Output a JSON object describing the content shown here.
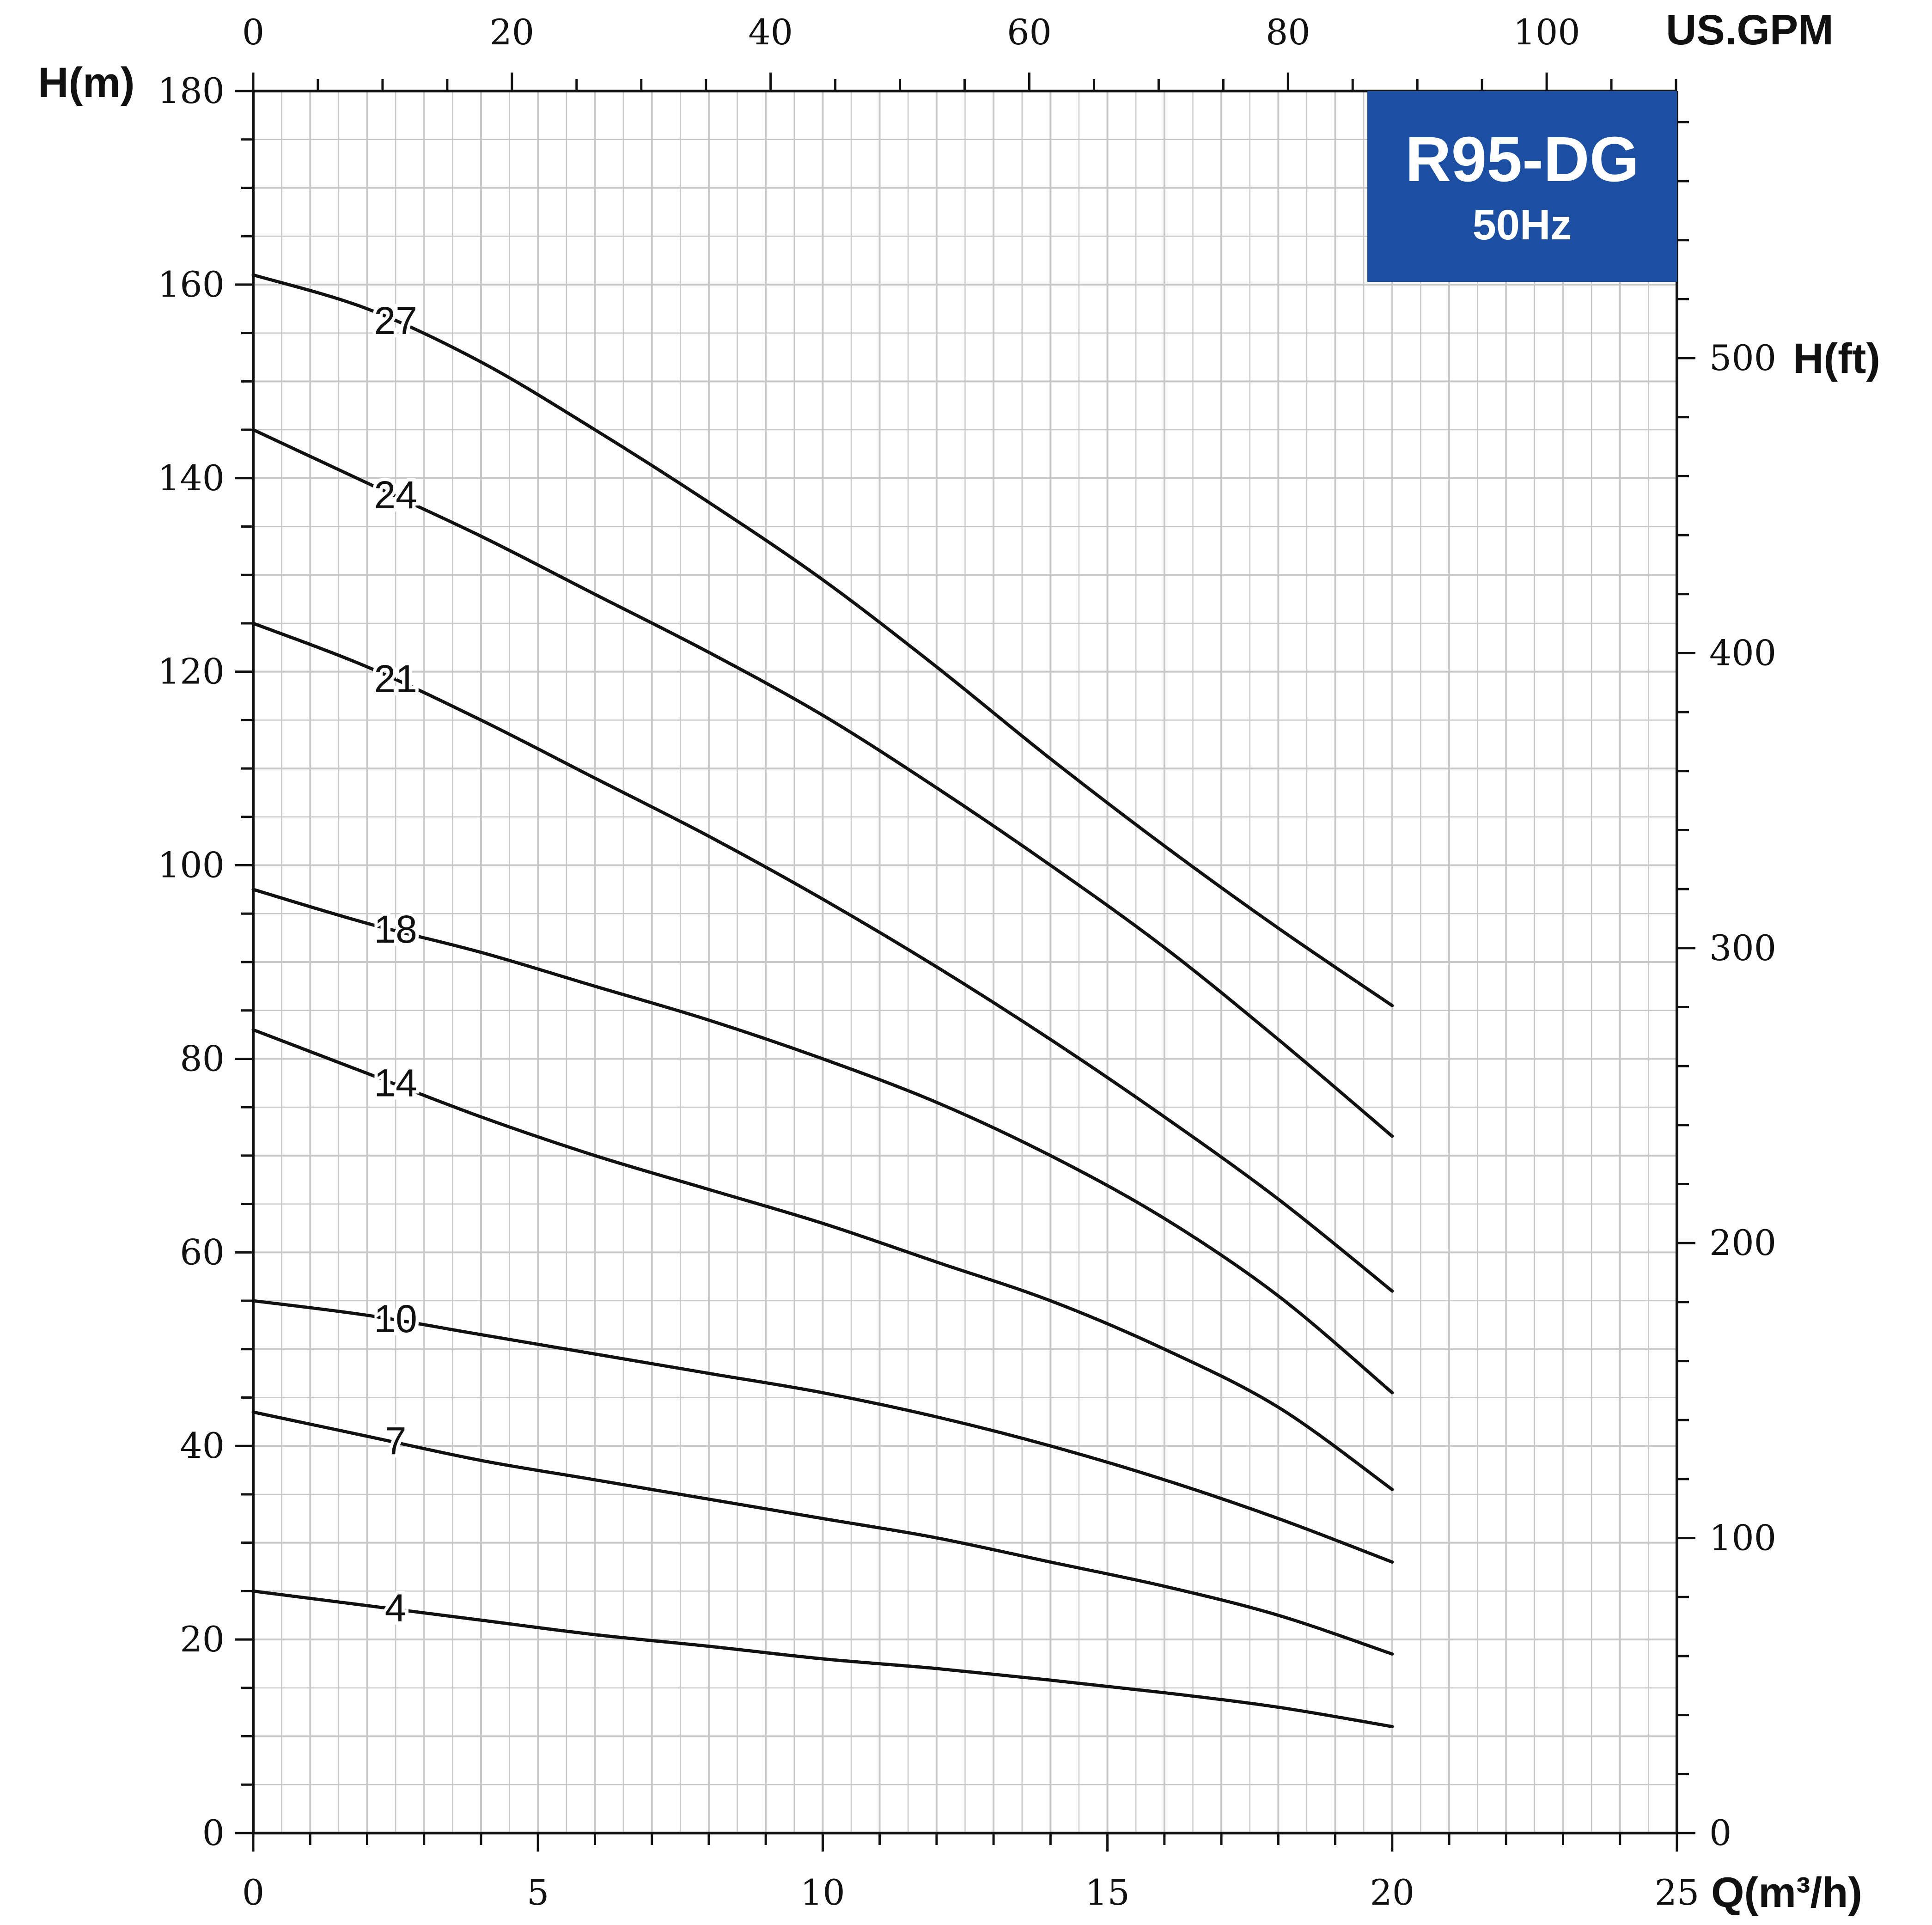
{
  "chart_data": {
    "type": "line",
    "title": "R95-DG",
    "subtitle": "50Hz",
    "xlabel": "Q(m³/h)",
    "ylabel": "H(m)",
    "x2label": "US.GPM",
    "y2label": "H(ft)",
    "xlim": [
      0,
      25
    ],
    "ylim": [
      0,
      180
    ],
    "x2lim": [
      0,
      110.07
    ],
    "y2lim": [
      0,
      590.55
    ],
    "x_ticks": [
      "0",
      "5",
      "10",
      "15",
      "20",
      "25"
    ],
    "y_ticks": [
      "0",
      "20",
      "40",
      "60",
      "80",
      "100",
      "120",
      "140",
      "160",
      "180"
    ],
    "x2_ticks": [
      "0",
      "20",
      "40",
      "60",
      "80",
      "100"
    ],
    "y2_ticks": [
      "0",
      "100",
      "200",
      "300",
      "400",
      "500"
    ],
    "grid": true,
    "legend": "none",
    "series": [
      {
        "name": "27",
        "label_x": 2.5,
        "x": [
          0,
          2,
          4,
          6,
          8,
          10,
          12,
          14,
          16,
          18,
          20
        ],
        "y": [
          161,
          157.5,
          152,
          145,
          137.5,
          129.5,
          120.5,
          111,
          102,
          93.5,
          85.5
        ]
      },
      {
        "name": "24",
        "label_x": 2.5,
        "x": [
          0,
          2,
          4,
          6,
          8,
          10,
          12,
          14,
          16,
          18,
          20
        ],
        "y": [
          145,
          139.5,
          134,
          128,
          122,
          115.5,
          108,
          100,
          91.5,
          82,
          72
        ]
      },
      {
        "name": "21",
        "label_x": 2.5,
        "x": [
          0,
          2,
          4,
          6,
          8,
          10,
          12,
          14,
          16,
          18,
          20
        ],
        "y": [
          125,
          120.5,
          115,
          109,
          103,
          96.5,
          89.5,
          82,
          74,
          65.5,
          56
        ]
      },
      {
        "name": "18",
        "label_x": 2.5,
        "x": [
          0,
          2,
          4,
          6,
          8,
          10,
          12,
          14,
          16,
          18,
          20
        ],
        "y": [
          97.5,
          94,
          91,
          87.5,
          84,
          80,
          75.5,
          70,
          63.5,
          55.5,
          45.5
        ]
      },
      {
        "name": "14",
        "label_x": 2.5,
        "x": [
          0,
          2,
          4,
          6,
          8,
          10,
          12,
          14,
          16,
          18,
          20
        ],
        "y": [
          83,
          78.5,
          74,
          70,
          66.5,
          63,
          59,
          55,
          50,
          44,
          35.5
        ]
      },
      {
        "name": "10",
        "label_x": 2.5,
        "x": [
          0,
          2,
          4,
          6,
          8,
          10,
          12,
          14,
          16,
          18,
          20
        ],
        "y": [
          55,
          53.5,
          51.5,
          49.5,
          47.5,
          45.5,
          43,
          40,
          36.5,
          32.5,
          28
        ]
      },
      {
        "name": "7",
        "label_x": 2.5,
        "x": [
          0,
          2,
          4,
          6,
          8,
          10,
          12,
          14,
          16,
          18,
          20
        ],
        "y": [
          43.5,
          41,
          38.5,
          36.5,
          34.5,
          32.5,
          30.5,
          28,
          25.5,
          22.5,
          18.5
        ]
      },
      {
        "name": "4",
        "label_x": 2.5,
        "x": [
          0,
          2,
          4,
          6,
          8,
          10,
          12,
          14,
          16,
          18,
          20
        ],
        "y": [
          25,
          23.5,
          22,
          20.5,
          19.3,
          18,
          17,
          15.8,
          14.5,
          13,
          11
        ]
      }
    ],
    "colors": {
      "line": "#111111",
      "grid": "#c8c8c8",
      "axis": "#111111",
      "box": "#1c4ea1",
      "box_text": "#ffffff"
    }
  }
}
